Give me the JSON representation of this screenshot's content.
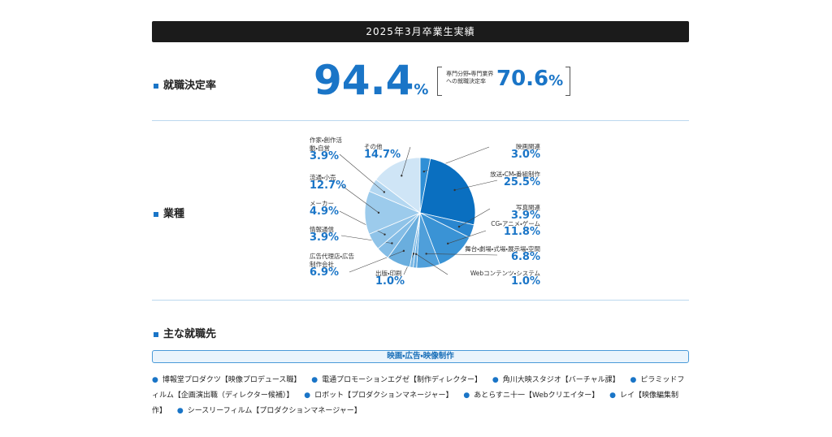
{
  "header": {
    "title": "2025年3月卒業生実績"
  },
  "stats": {
    "label": "就職決定率",
    "rate": "94.4",
    "unit": "%",
    "sub_label": "専門分野・専門業界への就職決定率",
    "sub_rate": "70.6"
  },
  "chart_data": {
    "type": "pie",
    "title": "業種",
    "categories": [
      "映画関連",
      "放送・CM・番組制作",
      "写真関連",
      "CG・アニメ・ゲーム",
      "舞台・劇場・式場・展示場・空間",
      "Webコンテンツ・システム",
      "出版・印刷",
      "広告代理店・広告制作会社",
      "情報通信",
      "メーカー",
      "流通・小売",
      "作家・創作活動・自営",
      "その他"
    ],
    "values": [
      3.0,
      25.5,
      3.9,
      11.8,
      6.8,
      1.0,
      1.0,
      6.9,
      3.9,
      4.9,
      12.7,
      3.9,
      14.7
    ],
    "value_labels": [
      "3.0%",
      "25.5%",
      "3.9%",
      "11.8%",
      "6.8%",
      "1.0%",
      "1.0%",
      "6.9%",
      "3.9%",
      "4.9%",
      "12.7%",
      "3.9%",
      "14.7%"
    ],
    "colors": [
      "#2f8fd6",
      "#0a6fc0",
      "#2a86cf",
      "#3a93d5",
      "#4f9fda",
      "#64abe0",
      "#78b6e3",
      "#6aaede",
      "#84bde6",
      "#8fc3e8",
      "#9ccbec",
      "#b3d7f1",
      "#cfe5f6"
    ]
  },
  "employers": {
    "label": "主な就職先",
    "category": "映画・広告・映像制作",
    "items": [
      "博報堂プロダクツ【映像プロデュース職】",
      "電通プロモーションエグゼ【制作ディレクター】",
      "角川大映スタジオ【バーチャル課】",
      "ピラミッドフィルム【企画演出職（ディレクター候補）】",
      "ロボット【プロダクションマネージャー】",
      "あとらすニ十一【Webクリエイター】",
      "レイ【映像編集制作】",
      "シースリーフィルム【プロダクションマネージャー】"
    ]
  }
}
